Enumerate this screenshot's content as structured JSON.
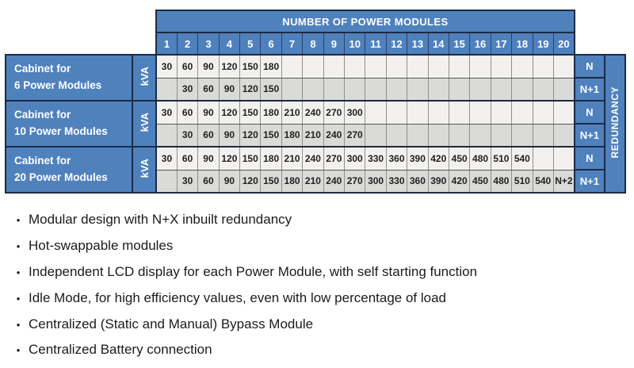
{
  "colors": {
    "header_blue": "#4f81bd",
    "border_dark": "#1c2b45",
    "row_n_bg": "#f2f1ef",
    "row_n1_bg": "#dadad8",
    "text_dark": "#1b1b1b"
  },
  "table": {
    "title": "NUMBER OF POWER MODULES",
    "columns": [
      "1",
      "2",
      "3",
      "4",
      "5",
      "6",
      "7",
      "8",
      "9",
      "10",
      "11",
      "12",
      "13",
      "14",
      "15",
      "16",
      "17",
      "18",
      "19",
      "20"
    ],
    "kva_label": "kVA",
    "redundancy_label": "REDUNDANCY",
    "blocks": [
      {
        "label_lines": [
          "Cabinet for",
          "6 Power Modules"
        ],
        "rows": [
          {
            "redundancy": "N",
            "values": [
              "30",
              "60",
              "90",
              "120",
              "150",
              "180",
              "",
              "",
              "",
              "",
              "",
              "",
              "",
              "",
              "",
              "",
              "",
              "",
              "",
              ""
            ]
          },
          {
            "redundancy": "N+1",
            "values": [
              "",
              "30",
              "60",
              "90",
              "120",
              "150",
              "",
              "",
              "",
              "",
              "",
              "",
              "",
              "",
              "",
              "",
              "",
              "",
              "",
              ""
            ]
          }
        ]
      },
      {
        "label_lines": [
          "Cabinet for",
          "10 Power Modules"
        ],
        "rows": [
          {
            "redundancy": "N",
            "values": [
              "30",
              "60",
              "90",
              "120",
              "150",
              "180",
              "210",
              "240",
              "270",
              "300",
              "",
              "",
              "",
              "",
              "",
              "",
              "",
              "",
              "",
              ""
            ]
          },
          {
            "redundancy": "N+1",
            "values": [
              "",
              "30",
              "60",
              "90",
              "120",
              "150",
              "180",
              "210",
              "240",
              "270",
              "",
              "",
              "",
              "",
              "",
              "",
              "",
              "",
              "",
              ""
            ]
          }
        ]
      },
      {
        "label_lines": [
          "Cabinet for",
          "20 Power Modules"
        ],
        "rows": [
          {
            "redundancy": "N",
            "values": [
              "30",
              "60",
              "90",
              "120",
              "150",
              "180",
              "210",
              "240",
              "270",
              "300",
              "330",
              "360",
              "390",
              "420",
              "450",
              "480",
              "510",
              "540",
              "",
              ""
            ]
          },
          {
            "redundancy": "N+1",
            "values": [
              "",
              "30",
              "60",
              "90",
              "120",
              "150",
              "180",
              "210",
              "240",
              "270",
              "300",
              "330",
              "360",
              "390",
              "420",
              "450",
              "480",
              "510",
              "540",
              "N+2"
            ]
          }
        ]
      }
    ]
  },
  "bullet_glyph": "•",
  "bullets": [
    "Modular design with N+X inbuilt redundancy",
    "Hot-swappable modules",
    "Independent LCD display for each Power Module, with self starting function",
    "Idle Mode, for high efficiency values, even with low percentage of load",
    "Centralized (Static and Manual) Bypass Module",
    "Centralized Battery connection"
  ]
}
